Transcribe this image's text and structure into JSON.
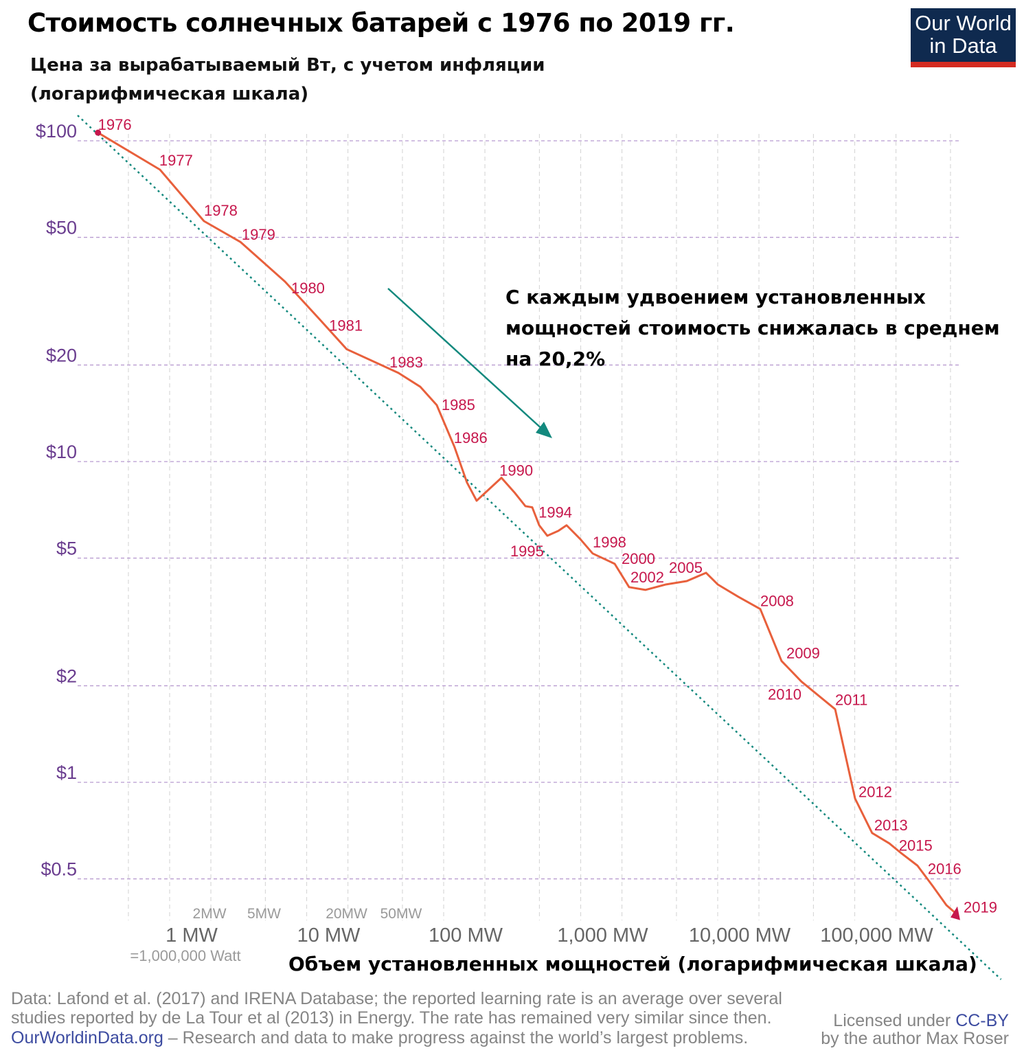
{
  "header": {
    "title": "Стоимость солнечных батарей с 1976 по 2019 гг.",
    "subtitle_line1": "Цена за вырабатываемый Вт, с учетом инфляции",
    "subtitle_line2": "(логарифмическая шкала)",
    "logo_line1": "Our World",
    "logo_line2": "in Data"
  },
  "annotation": "С каждым удвоением установленных мощностей стоимость снижалась в среднем на 20,2%",
  "footer": {
    "source_line1": "Data: Lafond et al. (2017) and IRENA Database; the reported learning rate is an average over several",
    "source_line2": "studies reported by de La Tour et al (2013) in Energy. The rate has remained very similar since then.",
    "site": "OurWorldinData.org",
    "tagline": " – Research and data to make progress against the world’s largest problems.",
    "license_prefix": "Licensed under ",
    "license": "CC-BY",
    "author": "by the author Max Roser"
  },
  "colors": {
    "series": "#e8603c",
    "labels": "#c6174c",
    "trend": "#13897e",
    "arrow": "#13897e",
    "ygrid": "#b89bd0",
    "ytick": "#6a3d8f",
    "xtick": "#666666",
    "logo_bg": "#0f2a4f",
    "logo_bar": "#d42b21"
  },
  "chart_data": {
    "type": "line",
    "xscale": "log",
    "yscale": "log",
    "xlabel": "Объем установленных мощностей (логарифмическая шкала)",
    "ylabel": "Цена за вырабатываемый Вт, с учетом инфляции (логарифмическая шкала)",
    "x_unit": "MW",
    "y_unit": "USD per W",
    "y_ticks": [
      {
        "v": 100,
        "label": "$100"
      },
      {
        "v": 50,
        "label": "$50"
      },
      {
        "v": 20,
        "label": "$20"
      },
      {
        "v": 10,
        "label": "$10"
      },
      {
        "v": 5,
        "label": "$5"
      },
      {
        "v": 2,
        "label": "$2"
      },
      {
        "v": 1,
        "label": "$1"
      },
      {
        "v": 0.5,
        "label": "$0.5"
      }
    ],
    "x_ticks_major": [
      {
        "v": 1,
        "label": "1 MW"
      },
      {
        "v": 10,
        "label": "10 MW"
      },
      {
        "v": 100,
        "label": "100 MW"
      },
      {
        "v": 1000,
        "label": "1,000 MW"
      },
      {
        "v": 10000,
        "label": "10,000 MW"
      },
      {
        "v": 100000,
        "label": "100,000 MW"
      }
    ],
    "x_ticks_minor": [
      {
        "v": 2,
        "label": "2MW"
      },
      {
        "v": 5,
        "label": "5MW"
      },
      {
        "v": 20,
        "label": "20MW"
      },
      {
        "v": 50,
        "label": "50MW"
      }
    ],
    "x_note": "=1,000,000 Watt",
    "grid": true,
    "series": [
      {
        "points": [
          {
            "year": 1976,
            "x": 0.3,
            "y": 106,
            "label": true
          },
          {
            "year": 1977,
            "x": 0.85,
            "y": 81.3,
            "label": true
          },
          {
            "year": 1978,
            "x": 1.78,
            "y": 56.2,
            "label": true
          },
          {
            "year": 1979,
            "x": 3.28,
            "y": 48.4,
            "label": true
          },
          {
            "year": 1980,
            "x": 6.95,
            "y": 36.4,
            "label": true
          },
          {
            "year": 1981,
            "x": 12.4,
            "y": 27.8,
            "label": true
          },
          {
            "year": 1982,
            "x": 19.6,
            "y": 22.4,
            "label": false
          },
          {
            "year": 1983,
            "x": 46.7,
            "y": 18.9,
            "label": true
          },
          {
            "year": 1984,
            "x": 67.6,
            "y": 17.1,
            "label": false
          },
          {
            "year": 1985,
            "x": 89,
            "y": 15.0,
            "label": true
          },
          {
            "year": 1986,
            "x": 120,
            "y": 11.1,
            "label": true
          },
          {
            "year": 1987,
            "x": 148,
            "y": 8.6,
            "label": false
          },
          {
            "year": 1988,
            "x": 174,
            "y": 7.55,
            "label": false
          },
          {
            "year": 1990,
            "x": 264,
            "y": 8.9,
            "label": true
          },
          {
            "year": 1991,
            "x": 332,
            "y": 7.97,
            "label": false
          },
          {
            "year": 1992,
            "x": 395,
            "y": 7.26,
            "label": false
          },
          {
            "year": 1993,
            "x": 443,
            "y": 7.2,
            "label": false
          },
          {
            "year": 1994,
            "x": 498,
            "y": 6.33,
            "label": true
          },
          {
            "year": 1995,
            "x": 571,
            "y": 5.87,
            "label": true
          },
          {
            "year": 1996,
            "x": 687,
            "y": 6.08,
            "label": false
          },
          {
            "year": 1997,
            "x": 789,
            "y": 6.33,
            "label": false
          },
          {
            "year": 1998,
            "x": 994,
            "y": 5.73,
            "label": true
          },
          {
            "year": 1999,
            "x": 1223,
            "y": 5.17,
            "label": false
          },
          {
            "year": 2000,
            "x": 1771,
            "y": 4.8,
            "label": true
          },
          {
            "year": 2001,
            "x": 2256,
            "y": 4.06,
            "label": false
          },
          {
            "year": 2002,
            "x": 2976,
            "y": 3.98,
            "label": true
          },
          {
            "year": 2003,
            "x": 4209,
            "y": 4.14,
            "label": false
          },
          {
            "year": 2004,
            "x": 5947,
            "y": 4.24,
            "label": false
          },
          {
            "year": 2005,
            "x": 8220,
            "y": 4.5,
            "label": true
          },
          {
            "year": 2006,
            "x": 10000,
            "y": 4.14,
            "label": false
          },
          {
            "year": 2007,
            "x": 14130,
            "y": 3.79,
            "label": false
          },
          {
            "year": 2008,
            "x": 20450,
            "y": 3.47,
            "label": true
          },
          {
            "year": 2009,
            "x": 29240,
            "y": 2.39,
            "label": true
          },
          {
            "year": 2010,
            "x": 40900,
            "y": 2.06,
            "label": true
          },
          {
            "year": 2011,
            "x": 72000,
            "y": 1.69,
            "label": true
          },
          {
            "year": 2012,
            "x": 100600,
            "y": 0.89,
            "label": true
          },
          {
            "year": 2013,
            "x": 134000,
            "y": 0.695,
            "label": true
          },
          {
            "year": 2014,
            "x": 179000,
            "y": 0.645,
            "label": false
          },
          {
            "year": 2015,
            "x": 220000,
            "y": 0.6,
            "label": true
          },
          {
            "year": 2016,
            "x": 287000,
            "y": 0.55,
            "label": true
          },
          {
            "year": 2017,
            "x": 371000,
            "y": 0.475,
            "label": false
          },
          {
            "year": 2018,
            "x": 467000,
            "y": 0.414,
            "label": false
          },
          {
            "year": 2019,
            "x": 568000,
            "y": 0.385,
            "label": true
          }
        ]
      }
    ],
    "trend_line": {
      "style": "dotted",
      "from": {
        "x": 0.213,
        "y": 120
      },
      "to": {
        "x": 1170000,
        "y": 0.243
      },
      "learning_rate_percent": 20.2
    }
  }
}
